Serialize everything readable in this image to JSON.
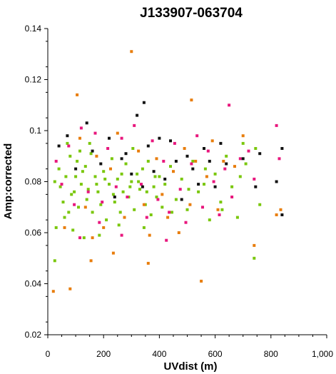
{
  "chart_data": {
    "type": "scatter",
    "title": "J133907-063704",
    "xlabel": "UVdist (m)",
    "ylabel": "Amp:corrected",
    "xlim": [
      0,
      1000
    ],
    "ylim": [
      0.02,
      0.14
    ],
    "x_ticks": [
      "0",
      "200",
      "400",
      "600",
      "800",
      "1,000"
    ],
    "y_ticks": [
      "0.02",
      "0.04",
      "0.06",
      "0.08",
      "0.1",
      "0.12",
      "0.14"
    ],
    "x_tick_values": [
      0,
      200,
      400,
      600,
      800,
      1000
    ],
    "y_tick_values": [
      0.02,
      0.04,
      0.06,
      0.08,
      0.1,
      0.12,
      0.14
    ],
    "grid": false,
    "legend": "none",
    "series": [
      {
        "color": "#7ac70c",
        "points": [
          [
            25,
            0.049
          ],
          [
            30,
            0.062
          ],
          [
            40,
            0.085
          ],
          [
            55,
            0.072
          ],
          [
            60,
            0.066
          ],
          [
            70,
            0.095
          ],
          [
            80,
            0.09
          ],
          [
            85,
            0.075
          ],
          [
            90,
            0.061
          ],
          [
            100,
            0.082
          ],
          [
            110,
            0.07
          ],
          [
            115,
            0.092
          ],
          [
            120,
            0.079
          ],
          [
            130,
            0.058
          ],
          [
            135,
            0.086
          ],
          [
            140,
            0.073
          ],
          [
            150,
            0.095
          ],
          [
            160,
            0.068
          ],
          [
            170,
            0.082
          ],
          [
            180,
            0.076
          ],
          [
            190,
            0.071
          ],
          [
            200,
            0.084
          ],
          [
            210,
            0.065
          ],
          [
            220,
            0.079
          ],
          [
            230,
            0.089
          ],
          [
            240,
            0.072
          ],
          [
            250,
            0.081
          ],
          [
            260,
            0.068
          ],
          [
            270,
            0.076
          ],
          [
            280,
            0.087
          ],
          [
            290,
            0.074
          ],
          [
            300,
            0.08
          ],
          [
            310,
            0.069
          ],
          [
            320,
            0.083
          ],
          [
            330,
            0.077
          ],
          [
            340,
            0.085
          ],
          [
            350,
            0.071
          ],
          [
            360,
            0.088
          ],
          [
            370,
            0.067
          ],
          [
            380,
            0.078
          ],
          [
            390,
            0.074
          ],
          [
            400,
            0.082
          ],
          [
            410,
            0.07
          ],
          [
            420,
            0.079
          ],
          [
            440,
            0.086
          ],
          [
            460,
            0.073
          ],
          [
            480,
            0.081
          ],
          [
            500,
            0.069
          ],
          [
            520,
            0.088
          ],
          [
            540,
            0.076
          ],
          [
            560,
            0.079
          ],
          [
            580,
            0.065
          ],
          [
            600,
            0.083
          ],
          [
            620,
            0.072
          ],
          [
            640,
            0.09
          ],
          [
            660,
            0.078
          ],
          [
            680,
            0.066
          ],
          [
            700,
            0.095
          ],
          [
            710,
            0.087
          ],
          [
            740,
            0.05
          ],
          [
            745,
            0.093
          ],
          [
            760,
            0.071
          ],
          [
            25,
            0.08
          ],
          [
            45,
            0.078
          ],
          [
            65,
            0.082
          ],
          [
            95,
            0.076
          ],
          [
            125,
            0.084
          ],
          [
            145,
            0.077
          ],
          [
            175,
            0.079
          ],
          [
            205,
            0.081
          ],
          [
            235,
            0.075
          ],
          [
            265,
            0.083
          ],
          [
            295,
            0.078
          ],
          [
            325,
            0.08
          ],
          [
            355,
            0.076
          ],
          [
            385,
            0.082
          ],
          [
            105,
            0.088
          ],
          [
            155,
            0.091
          ],
          [
            255,
            0.063
          ],
          [
            305,
            0.093
          ],
          [
            75,
            0.068
          ],
          [
            185,
            0.059
          ],
          [
            345,
            0.062
          ],
          [
            445,
            0.068
          ],
          [
            505,
            0.077
          ],
          [
            565,
            0.085
          ],
          [
            625,
            0.069
          ],
          [
            690,
            0.082
          ]
        ]
      },
      {
        "color": "#e8177d",
        "points": [
          [
            30,
            0.088
          ],
          [
            50,
            0.079
          ],
          [
            75,
            0.094
          ],
          [
            95,
            0.071
          ],
          [
            120,
            0.101
          ],
          [
            145,
            0.076
          ],
          [
            170,
            0.099
          ],
          [
            195,
            0.072
          ],
          [
            215,
            0.093
          ],
          [
            245,
            0.078
          ],
          [
            265,
            0.097
          ],
          [
            285,
            0.074
          ],
          [
            310,
            0.102
          ],
          [
            335,
            0.079
          ],
          [
            355,
            0.066
          ],
          [
            375,
            0.096
          ],
          [
            395,
            0.073
          ],
          [
            415,
            0.088
          ],
          [
            435,
            0.068
          ],
          [
            455,
            0.095
          ],
          [
            475,
            0.077
          ],
          [
            495,
            0.064
          ],
          [
            515,
            0.087
          ],
          [
            535,
            0.098
          ],
          [
            555,
            0.07
          ],
          [
            575,
            0.092
          ],
          [
            595,
            0.08
          ],
          [
            615,
            0.067
          ],
          [
            635,
            0.085
          ],
          [
            650,
            0.11
          ],
          [
            660,
            0.074
          ],
          [
            690,
            0.089
          ],
          [
            720,
            0.092
          ],
          [
            740,
            0.081
          ],
          [
            820,
            0.102
          ],
          [
            830,
            0.089
          ],
          [
            265,
            0.059
          ],
          [
            185,
            0.064
          ],
          [
            115,
            0.058
          ],
          [
            425,
            0.057
          ]
        ]
      },
      {
        "color": "#e87d0c",
        "points": [
          [
            20,
            0.037
          ],
          [
            60,
            0.062
          ],
          [
            80,
            0.038
          ],
          [
            105,
            0.114
          ],
          [
            115,
            0.097
          ],
          [
            135,
            0.07
          ],
          [
            155,
            0.049
          ],
          [
            175,
            0.09
          ],
          [
            200,
            0.062
          ],
          [
            225,
            0.085
          ],
          [
            250,
            0.099
          ],
          [
            275,
            0.066
          ],
          [
            300,
            0.131
          ],
          [
            325,
            0.092
          ],
          [
            345,
            0.071
          ],
          [
            365,
            0.059
          ],
          [
            390,
            0.089
          ],
          [
            410,
            0.075
          ],
          [
            430,
            0.066
          ],
          [
            450,
            0.084
          ],
          [
            470,
            0.06
          ],
          [
            490,
            0.093
          ],
          [
            510,
            0.071
          ],
          [
            530,
            0.088
          ],
          [
            550,
            0.041
          ],
          [
            570,
            0.082
          ],
          [
            590,
            0.096
          ],
          [
            610,
            0.069
          ],
          [
            630,
            0.088
          ],
          [
            670,
            0.086
          ],
          [
            700,
            0.098
          ],
          [
            740,
            0.055
          ],
          [
            820,
            0.067
          ],
          [
            835,
            0.069
          ],
          [
            160,
            0.058
          ],
          [
            360,
            0.048
          ],
          [
            515,
            0.112
          ],
          [
            235,
            0.052
          ]
        ]
      },
      {
        "color": "#111111",
        "points": [
          [
            40,
            0.094
          ],
          [
            70,
            0.098
          ],
          [
            100,
            0.085
          ],
          [
            140,
            0.103
          ],
          [
            160,
            0.092
          ],
          [
            190,
            0.087
          ],
          [
            220,
            0.097
          ],
          [
            240,
            0.074
          ],
          [
            280,
            0.091
          ],
          [
            300,
            0.083
          ],
          [
            320,
            0.106
          ],
          [
            340,
            0.078
          ],
          [
            360,
            0.094
          ],
          [
            380,
            0.084
          ],
          [
            400,
            0.097
          ],
          [
            420,
            0.081
          ],
          [
            440,
            0.096
          ],
          [
            460,
            0.088
          ],
          [
            480,
            0.073
          ],
          [
            500,
            0.09
          ],
          [
            520,
            0.085
          ],
          [
            540,
            0.079
          ],
          [
            560,
            0.093
          ],
          [
            580,
            0.088
          ],
          [
            600,
            0.078
          ],
          [
            620,
            0.095
          ],
          [
            640,
            0.087
          ],
          [
            700,
            0.089
          ],
          [
            745,
            0.078
          ],
          [
            760,
            0.091
          ],
          [
            820,
            0.08
          ],
          [
            840,
            0.067
          ],
          [
            840,
            0.093
          ],
          [
            345,
            0.111
          ],
          [
            265,
            0.089
          ]
        ]
      }
    ]
  }
}
